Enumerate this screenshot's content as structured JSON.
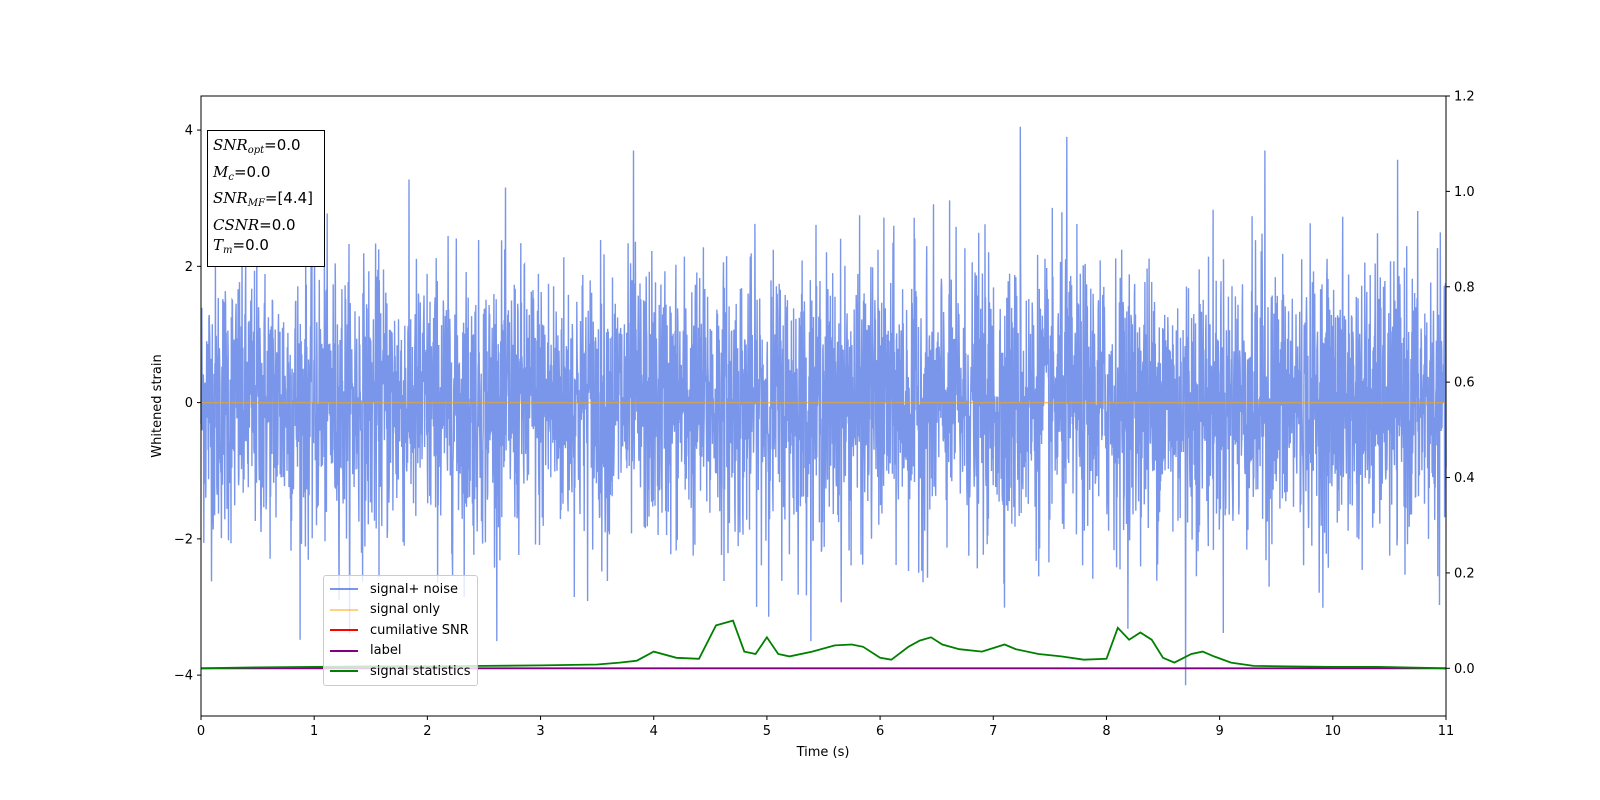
{
  "chart_data": {
    "type": "line",
    "xlabel": "Time (s)",
    "ylabel": "Whitened strain",
    "xlim": [
      0,
      11
    ],
    "ylim": [
      -4.6,
      4.5
    ],
    "y2lim": [
      -0.1,
      1.2
    ],
    "x_ticks": [
      0,
      1,
      2,
      3,
      4,
      5,
      6,
      7,
      8,
      9,
      10,
      11
    ],
    "y_ticks": [
      -4,
      -2,
      0,
      2,
      4
    ],
    "y2_ticks": [
      "0.0",
      "0.2",
      "0.4",
      "0.6",
      "0.8",
      "1.0",
      "1.2"
    ],
    "legend_position": "lower-left",
    "series": [
      {
        "name": "signal+ noise",
        "color": "#4169e1",
        "axis": "left",
        "description_values": {
          "mean": 0.0,
          "std": 1.0,
          "extremes": [
            [
              7.24,
              4.05
            ],
            [
              8.7,
              -4.15
            ],
            [
              3.82,
              3.7
            ],
            [
              7.65,
              3.9
            ],
            [
              9.4,
              3.7
            ]
          ]
        }
      },
      {
        "name": "signal only",
        "color": "#ffa500",
        "axis": "left",
        "x": [
          0,
          11
        ],
        "y": [
          0,
          0
        ]
      },
      {
        "name": "cumilative SNR",
        "color": "#ff0000",
        "axis": "right",
        "x": [],
        "y": []
      },
      {
        "name": "label",
        "color": "#800080",
        "axis": "right",
        "x": [
          0,
          11
        ],
        "y": [
          0,
          0
        ]
      },
      {
        "name": "signal statistics",
        "color": "#008000",
        "axis": "right",
        "x": [
          0,
          0.5,
          1.0,
          1.5,
          2.0,
          2.5,
          3.0,
          3.5,
          3.7,
          3.85,
          4.0,
          4.2,
          4.4,
          4.55,
          4.7,
          4.8,
          4.9,
          5.0,
          5.1,
          5.2,
          5.4,
          5.6,
          5.75,
          5.85,
          6.0,
          6.1,
          6.25,
          6.35,
          6.45,
          6.55,
          6.7,
          6.9,
          7.1,
          7.2,
          7.4,
          7.6,
          7.8,
          8.0,
          8.1,
          8.2,
          8.3,
          8.4,
          8.5,
          8.6,
          8.75,
          8.85,
          8.95,
          9.1,
          9.3,
          9.6,
          10.0,
          10.4,
          11.0
        ],
        "y": [
          0.0,
          0.002,
          0.003,
          0.004,
          0.004,
          0.005,
          0.006,
          0.008,
          0.012,
          0.016,
          0.035,
          0.022,
          0.02,
          0.09,
          0.1,
          0.035,
          0.03,
          0.065,
          0.03,
          0.025,
          0.035,
          0.048,
          0.05,
          0.045,
          0.022,
          0.018,
          0.045,
          0.058,
          0.065,
          0.05,
          0.04,
          0.035,
          0.05,
          0.04,
          0.03,
          0.025,
          0.018,
          0.02,
          0.085,
          0.06,
          0.075,
          0.06,
          0.022,
          0.012,
          0.03,
          0.035,
          0.025,
          0.012,
          0.005,
          0.004,
          0.003,
          0.003,
          0.0
        ]
      }
    ]
  },
  "info_box": {
    "snr_opt": {
      "label": "SNR",
      "sub": "opt",
      "value": "=0.0"
    },
    "mc": {
      "label": "M",
      "sub": "c",
      "value": "=0.0"
    },
    "snr_mf": {
      "label": "SNR",
      "sub": "MF",
      "value": "=[4.4]"
    },
    "csnr": {
      "label": "CSNR",
      "value": "=0.0"
    },
    "tm": {
      "label": "T",
      "sub": "m",
      "value": "=0.0"
    }
  }
}
